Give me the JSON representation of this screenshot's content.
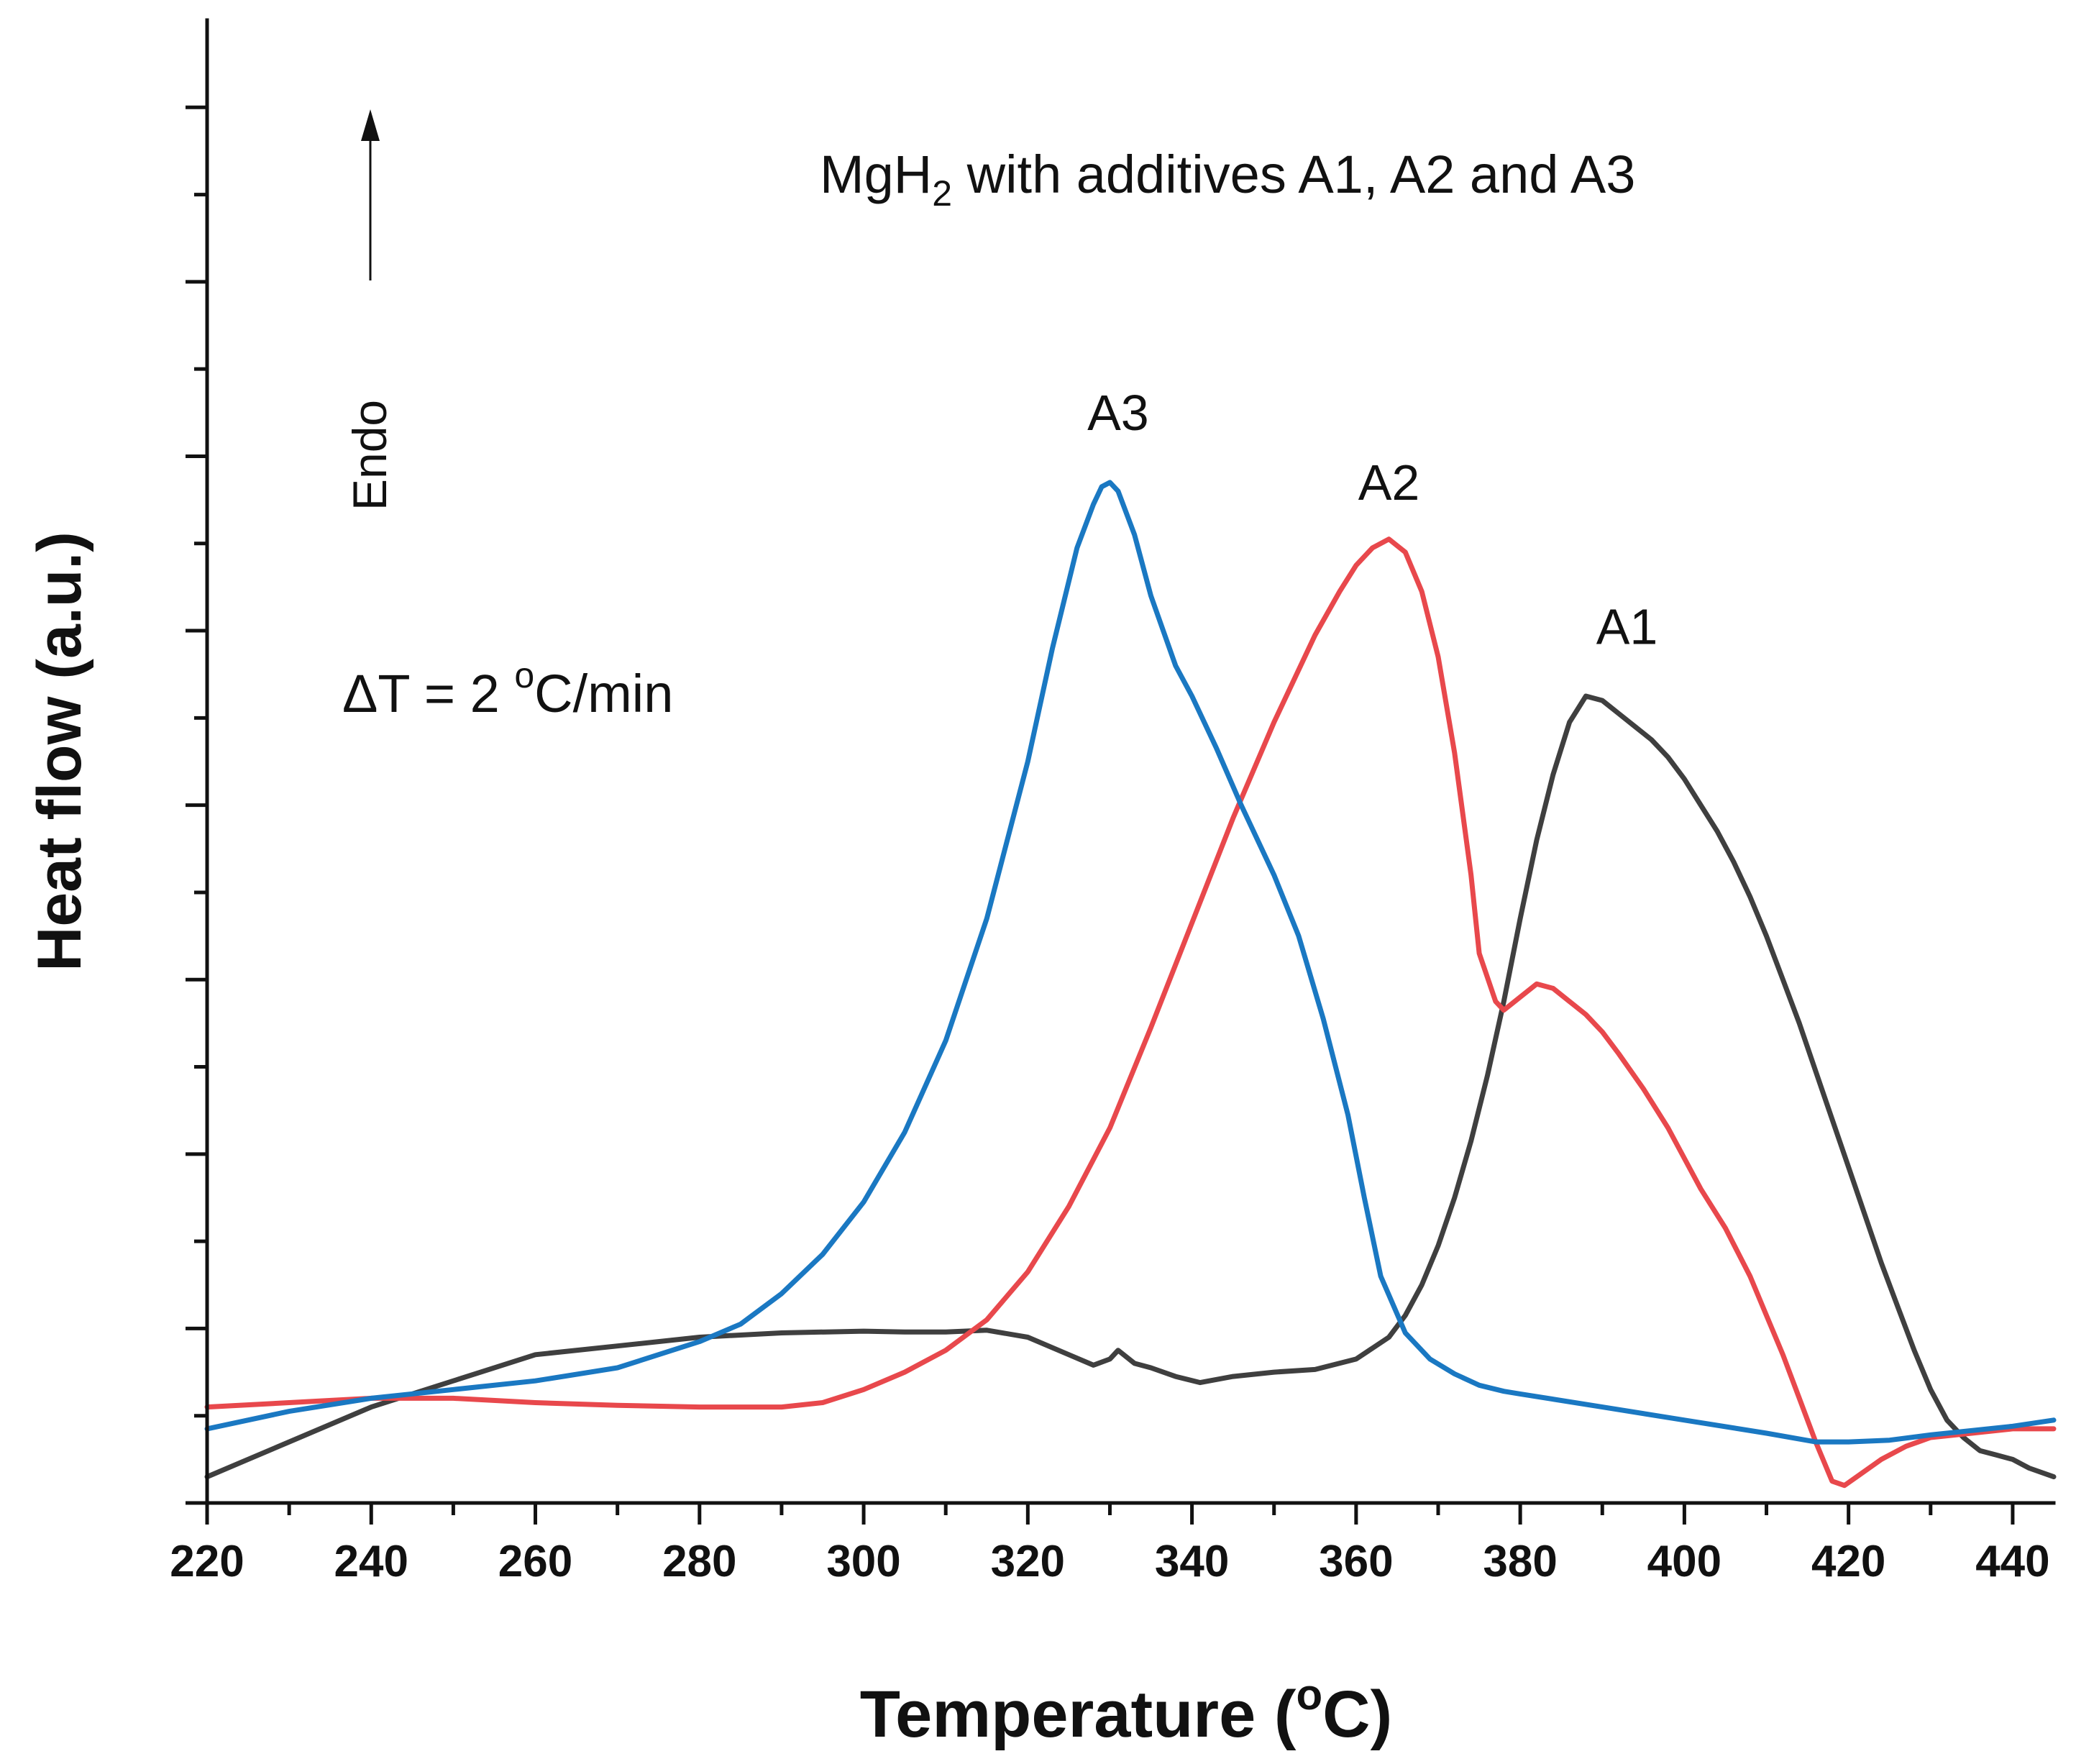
{
  "chart_data": {
    "type": "line",
    "title": "MgH2 with additives A1, A2 and A3",
    "title_parts": {
      "base": "MgH",
      "sub": "2",
      "rest": " with additives A1, A2 and A3"
    },
    "xlabel": "Temperature (oC)",
    "xlabel_parts": {
      "pre": "Temperature (",
      "sup": "o",
      "post": "C)"
    },
    "ylabel": "Heat flow (a.u.)",
    "xlim": [
      220,
      445
    ],
    "ylim": [
      0,
      17
    ],
    "xticks": [
      220,
      240,
      260,
      280,
      300,
      320,
      340,
      360,
      380,
      400,
      420,
      440
    ],
    "yticks_major": [
      0,
      2,
      4,
      6,
      8,
      10,
      12,
      14,
      16
    ],
    "yticks_minor": [
      1,
      3,
      5,
      7,
      9,
      11,
      13,
      15
    ],
    "ytick_labels_shown": false,
    "grid": false,
    "legend": "none",
    "annotations": {
      "rate_parts": {
        "pre": "ΔT = 2 ",
        "sup": "o",
        "post": "C/min"
      },
      "endo": "Endo",
      "endo_arrow": {
        "direction": "up"
      }
    },
    "series": [
      {
        "name": "A1",
        "color": "#3f3f3f",
        "label_at": [
          393,
          9.85
        ],
        "x": [
          220,
          230,
          240,
          250,
          260,
          270,
          280,
          290,
          300,
          305,
          310,
          315,
          320,
          325,
          328,
          330,
          331,
          333,
          335,
          338,
          341,
          345,
          350,
          355,
          360,
          364,
          366,
          368,
          370,
          372,
          374,
          376,
          378,
          380,
          382,
          384,
          386,
          388,
          390,
          392,
          394,
          396,
          398,
          400,
          402,
          404,
          406,
          408,
          410,
          412,
          414,
          416,
          418,
          420,
          422,
          424,
          426,
          428,
          430,
          432,
          434,
          436,
          438,
          440,
          442,
          445
        ],
        "y": [
          0.3,
          0.7,
          1.1,
          1.4,
          1.7,
          1.8,
          1.9,
          1.95,
          1.97,
          1.96,
          1.96,
          1.98,
          1.9,
          1.7,
          1.58,
          1.65,
          1.75,
          1.6,
          1.55,
          1.45,
          1.38,
          1.45,
          1.5,
          1.53,
          1.65,
          1.9,
          2.15,
          2.5,
          2.95,
          3.5,
          4.15,
          4.9,
          5.75,
          6.7,
          7.6,
          8.35,
          8.95,
          9.25,
          9.2,
          9.05,
          8.9,
          8.75,
          8.55,
          8.3,
          8.0,
          7.7,
          7.35,
          6.95,
          6.5,
          6.0,
          5.5,
          4.95,
          4.4,
          3.85,
          3.3,
          2.75,
          2.25,
          1.75,
          1.3,
          0.95,
          0.75,
          0.6,
          0.55,
          0.5,
          0.4,
          0.3
        ]
      },
      {
        "name": "A2",
        "color": "#e8484c",
        "label_at": [
          364,
          11.5
        ],
        "x": [
          220,
          230,
          240,
          250,
          260,
          270,
          280,
          290,
          295,
          300,
          305,
          310,
          315,
          320,
          325,
          330,
          335,
          340,
          345,
          350,
          355,
          358,
          360,
          362,
          364,
          366,
          368,
          370,
          372,
          374,
          375,
          377,
          378,
          380,
          382,
          384,
          386,
          388,
          390,
          392,
          395,
          398,
          400,
          402,
          405,
          408,
          410,
          412,
          414,
          416,
          418,
          419.5,
          421,
          424,
          427,
          430,
          435,
          440,
          445
        ],
        "y": [
          1.1,
          1.15,
          1.2,
          1.2,
          1.15,
          1.12,
          1.1,
          1.1,
          1.15,
          1.3,
          1.5,
          1.75,
          2.1,
          2.65,
          3.4,
          4.3,
          5.45,
          6.65,
          7.85,
          8.95,
          9.95,
          10.45,
          10.75,
          10.95,
          11.05,
          10.9,
          10.45,
          9.7,
          8.6,
          7.2,
          6.3,
          5.75,
          5.65,
          5.8,
          5.95,
          5.9,
          5.75,
          5.6,
          5.4,
          5.15,
          4.75,
          4.3,
          3.95,
          3.6,
          3.15,
          2.6,
          2.15,
          1.7,
          1.2,
          0.7,
          0.25,
          0.2,
          0.3,
          0.5,
          0.65,
          0.75,
          0.8,
          0.85,
          0.85
        ]
      },
      {
        "name": "A3",
        "color": "#1a78c2",
        "label_at": [
          331,
          12.3
        ],
        "x": [
          220,
          230,
          240,
          250,
          260,
          270,
          280,
          285,
          290,
          295,
          300,
          305,
          310,
          315,
          320,
          323,
          326,
          328,
          329,
          330,
          331,
          333,
          335,
          338,
          340,
          343,
          346,
          350,
          353,
          356,
          359,
          361,
          363,
          366,
          369,
          372,
          375,
          378,
          380,
          390,
          400,
          410,
          416,
          420,
          425,
          430,
          435,
          440,
          445
        ],
        "y": [
          0.85,
          1.05,
          1.2,
          1.3,
          1.4,
          1.55,
          1.85,
          2.05,
          2.4,
          2.85,
          3.45,
          4.25,
          5.3,
          6.7,
          8.5,
          9.8,
          10.95,
          11.45,
          11.65,
          11.7,
          11.6,
          11.1,
          10.4,
          9.6,
          9.25,
          8.65,
          8.0,
          7.2,
          6.5,
          5.55,
          4.45,
          3.5,
          2.6,
          1.95,
          1.65,
          1.48,
          1.35,
          1.28,
          1.25,
          1.1,
          0.95,
          0.8,
          0.7,
          0.7,
          0.72,
          0.78,
          0.83,
          0.88,
          0.95
        ]
      }
    ]
  }
}
